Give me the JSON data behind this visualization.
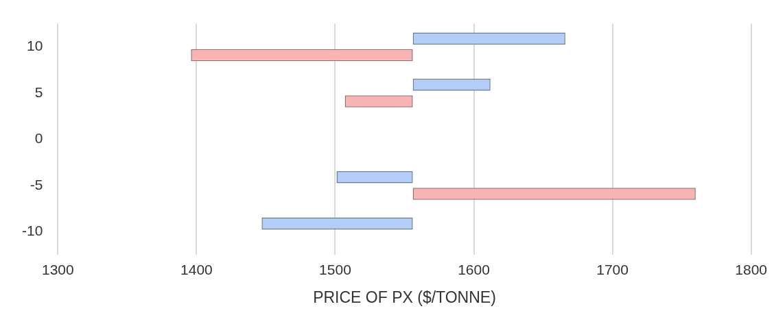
{
  "chart_data": {
    "type": "bar",
    "orientation": "horizontal",
    "xlabel": "PRICE OF PX ($/TONNE)",
    "categories": [
      "10",
      "5",
      "0",
      "-5",
      "-10"
    ],
    "series": [
      {
        "color": "#b4cdf6",
        "base": [
          1556,
          1556,
          null,
          1556,
          1556
        ],
        "values": [
          110,
          56,
          null,
          -55,
          -109
        ]
      },
      {
        "color": "#f7b4b4",
        "base": [
          1556,
          1556,
          null,
          1556,
          null
        ],
        "values": [
          -160,
          -49,
          null,
          204,
          null
        ]
      }
    ],
    "xlim": [
      1300,
      1800
    ],
    "xticks": [
      1300,
      1400,
      1500,
      1600,
      1700,
      1800
    ],
    "grid": "x"
  }
}
